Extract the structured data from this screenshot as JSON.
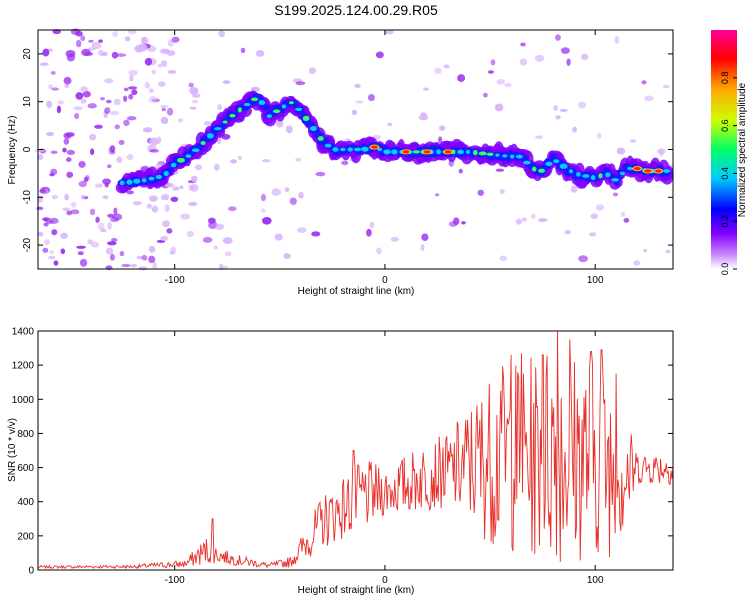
{
  "title": "S199.2025.124.00.29.R05",
  "chart_data": [
    {
      "type": "heatmap",
      "xlabel": "Height of straight line (km)",
      "ylabel": "Frequency (Hz)",
      "xlim": [
        -165,
        137
      ],
      "ylim": [
        -25,
        25
      ],
      "xticks": [
        -100,
        0,
        100
      ],
      "yticks": [
        -20,
        -10,
        0,
        10,
        20
      ],
      "colorbar": {
        "label": "Normalized spectral amplitude",
        "ticks": [
          "0.0",
          "0.2",
          "0.4",
          "0.6",
          "0.8"
        ],
        "range": [
          0,
          1
        ],
        "colors": [
          "#ffffff",
          "#cc88ff",
          "#7f00ff",
          "#0000ff",
          "#00ccff",
          "#00ff66",
          "#ccff00",
          "#ffaa00",
          "#ff0000",
          "#ff0099"
        ]
      },
      "ridge": {
        "x": [
          -125,
          -115,
          -105,
          -100,
          -92,
          -85,
          -78,
          -70,
          -62,
          -60,
          -55,
          -48,
          -45,
          -40,
          -35,
          -30,
          -25,
          -20,
          -10,
          -5,
          0,
          10,
          20,
          30,
          40,
          50,
          60,
          65,
          70,
          75,
          80,
          85,
          90,
          95,
          100,
          105,
          110,
          115,
          120,
          125,
          130,
          135
        ],
        "y": [
          -7,
          -6.5,
          -5.5,
          -3,
          -1,
          2,
          5,
          8,
          10.5,
          11,
          7,
          9,
          10,
          8,
          5,
          2,
          0,
          0,
          0,
          0.5,
          -0.5,
          -0.5,
          -0.5,
          -0.5,
          -0.5,
          -1,
          -1.5,
          -1.5,
          -4,
          -4.5,
          -2,
          -3.5,
          -5,
          -5.5,
          -6,
          -5,
          -6.5,
          -4,
          -4,
          -4.5,
          -4.5,
          -4.5
        ],
        "peaks_x": [
          -5,
          10,
          20,
          30,
          120,
          125,
          130
        ]
      }
    },
    {
      "type": "line",
      "xlabel": "Height of straight line (km)",
      "ylabel": "SNR (10 * v/v)",
      "xlim": [
        -165,
        137
      ],
      "ylim": [
        0,
        1400
      ],
      "xticks": [
        -100,
        0,
        100
      ],
      "yticks": [
        0,
        200,
        400,
        600,
        800,
        1000,
        1200,
        1400
      ],
      "series": [
        {
          "color": "#e8302a",
          "envelope": {
            "x": [
              -165,
              -120,
              -95,
              -85,
              -80,
              -70,
              -55,
              -45,
              -35,
              -30,
              -20,
              -15,
              -10,
              0,
              10,
              20,
              30,
              40,
              50,
              60,
              70,
              80,
              90,
              100,
              110,
              115,
              120,
              130,
              137
            ],
            "low": [
              10,
              10,
              12,
              30,
              40,
              25,
              10,
              15,
              80,
              120,
              180,
              200,
              220,
              320,
              320,
              350,
              360,
              260,
              150,
              80,
              60,
              40,
              40,
              60,
              80,
              200,
              500,
              500,
              500
            ],
            "high": [
              25,
              30,
              60,
              200,
              140,
              90,
              40,
              80,
              310,
              440,
              550,
              600,
              650,
              600,
              680,
              760,
              800,
              980,
              1150,
              1260,
              1250,
              1400,
              1300,
              1280,
              1150,
              900,
              700,
              700,
              680
            ]
          },
          "spikes": [
            {
              "x": -82,
              "y": 300
            },
            {
              "x": -15,
              "y": 700
            },
            {
              "x": 55,
              "y": 1050
            },
            {
              "x": 60,
              "y": 1260
            },
            {
              "x": 65,
              "y": 1270
            },
            {
              "x": 75,
              "y": 1260
            },
            {
              "x": 82,
              "y": 1400
            },
            {
              "x": 88,
              "y": 1350
            },
            {
              "x": 98,
              "y": 1280
            },
            {
              "x": 103,
              "y": 1290
            },
            {
              "x": 110,
              "y": 1150
            }
          ]
        }
      ]
    }
  ]
}
